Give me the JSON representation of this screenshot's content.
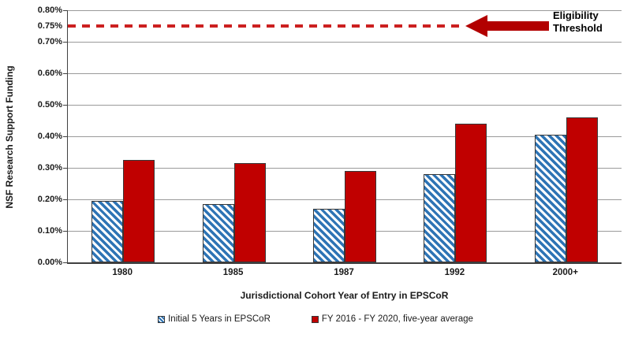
{
  "chart_data": {
    "type": "bar",
    "title": "",
    "categories": [
      "1980",
      "1985",
      "1987",
      "1992",
      "2000+"
    ],
    "series": [
      {
        "name": "Initial 5 Years in EPSCoR",
        "values": [
          0.195,
          0.185,
          0.17,
          0.28,
          0.405
        ],
        "color": "#2E74B5",
        "fill_style": "diagonal-stripes"
      },
      {
        "name": "FY 2016 - FY 2020, five-year average",
        "values": [
          0.325,
          0.315,
          0.29,
          0.44,
          0.46
        ],
        "color": "#C00000",
        "fill_style": "solid"
      }
    ],
    "xlabel": "Jurisdictional Cohort Year of Entry in EPSCoR",
    "ylabel": "NSF Research Support Funding",
    "ylim": [
      0,
      0.8
    ],
    "value_unit": "%",
    "yticks": [
      {
        "value": 0.0,
        "label": "0.00%",
        "gridline": false
      },
      {
        "value": 0.1,
        "label": "0.10%",
        "gridline": true
      },
      {
        "value": 0.2,
        "label": "0.20%",
        "gridline": true
      },
      {
        "value": 0.3,
        "label": "0.30%",
        "gridline": true
      },
      {
        "value": 0.4,
        "label": "0.40%",
        "gridline": true
      },
      {
        "value": 0.5,
        "label": "0.50%",
        "gridline": true
      },
      {
        "value": 0.6,
        "label": "0.60%",
        "gridline": true
      },
      {
        "value": 0.7,
        "label": "0.70%",
        "gridline": true
      },
      {
        "value": 0.75,
        "label": "0.75%",
        "gridline": false
      },
      {
        "value": 0.8,
        "label": "0.80%",
        "gridline": true
      }
    ],
    "grid": "horizontal",
    "legend_position": "bottom",
    "threshold": {
      "value": 0.75,
      "label_line1": "Eligibility",
      "label_line2": "Threshold",
      "line_color": "#CC2020",
      "arrow_color": "#B20000"
    },
    "colors": {
      "gridline": "#9a9a9a",
      "axis": "#404040",
      "text": "#1a1a1a"
    }
  }
}
